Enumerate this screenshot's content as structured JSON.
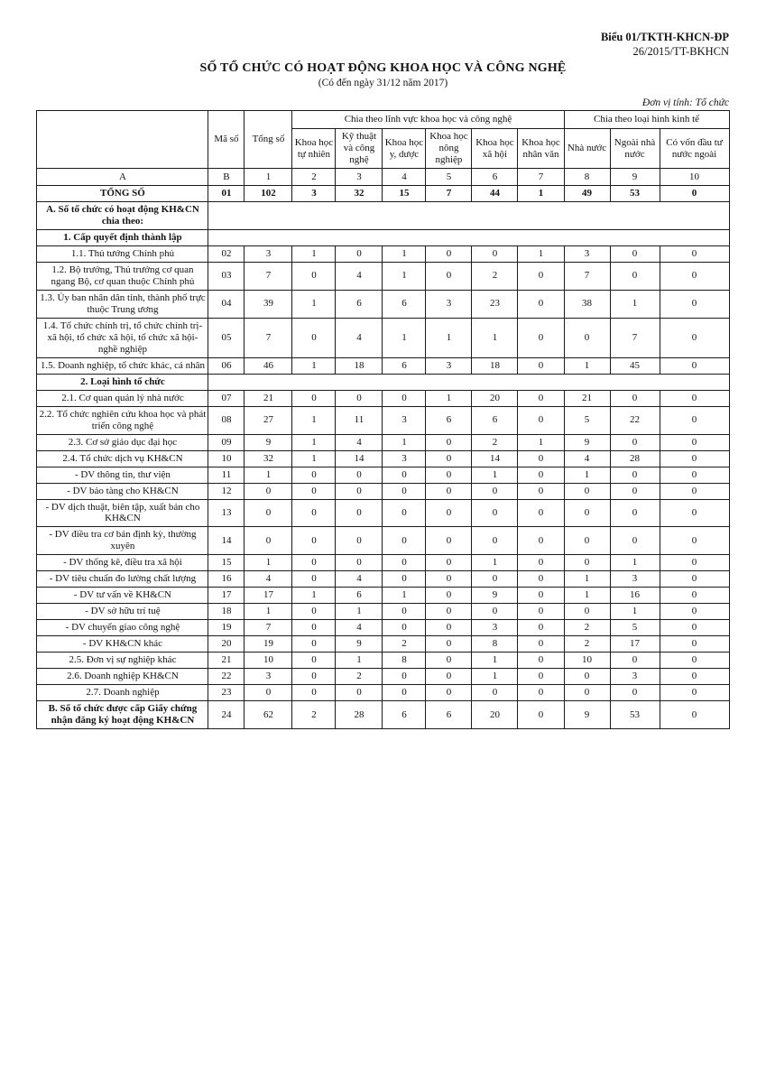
{
  "page": {
    "form_code": "Biểu 01/TKTH-KHCN-ĐP",
    "form_ref": "26/2015/TT-BKHCN",
    "title": "SỐ TỔ CHỨC CÓ HOẠT ĐỘNG KHOA HỌC VÀ CÔNG NGHỆ",
    "subtitle": "(Có đến ngày 31/12 năm 2017)",
    "unit_note": "Đơn vị tính: Tổ chức"
  },
  "table": {
    "header": {
      "col_ma_so": "Mã số",
      "col_tong_so": "Tổng số",
      "group_fields": "Chia theo lĩnh vực khoa học và công nghệ",
      "group_economy": "Chia theo loại hình kinh tế",
      "field_cols": [
        "Khoa học tự nhiên",
        "Kỹ thuật và công nghệ",
        "Khoa học y, dược",
        "Khoa học nông nghiệp",
        "Khoa học xã hội",
        "Khoa học nhân văn"
      ],
      "economy_cols": [
        "Nhà nước",
        "Ngoài nhà nước",
        "Có vốn đầu tư nước ngoài"
      ],
      "letter_row": [
        "A",
        "B",
        "1",
        "2",
        "3",
        "4",
        "5",
        "6",
        "7",
        "8",
        "9",
        "10"
      ]
    },
    "rows": [
      {
        "label": "TỔNG SỐ",
        "code": "01",
        "values": [
          "102",
          "3",
          "32",
          "15",
          "7",
          "44",
          "1",
          "49",
          "53",
          "0"
        ],
        "style": "total"
      },
      {
        "label": "A. Số tổ chức có hoạt động KH&CN chia theo:",
        "style": "section"
      },
      {
        "label": "1. Cấp quyết định thành lập",
        "style": "section"
      },
      {
        "label": "1.1. Thủ tướng Chính phủ",
        "code": "02",
        "values": [
          "3",
          "1",
          "0",
          "1",
          "0",
          "0",
          "1",
          "3",
          "0",
          "0"
        ]
      },
      {
        "label": "1.2. Bộ trưởng, Thủ trưởng cơ quan ngang Bộ, cơ quan thuộc Chính phủ",
        "code": "03",
        "values": [
          "7",
          "0",
          "4",
          "1",
          "0",
          "2",
          "0",
          "7",
          "0",
          "0"
        ]
      },
      {
        "label": "1.3. Ủy ban nhân dân tỉnh, thành phố trực thuộc Trung ương",
        "code": "04",
        "values": [
          "39",
          "1",
          "6",
          "6",
          "3",
          "23",
          "0",
          "38",
          "1",
          "0"
        ]
      },
      {
        "label": "1.4. Tổ chức chính trị, tổ chức chính trị-xã hội, tổ chức xã hội, tổ chức xã hội-nghề nghiệp",
        "code": "05",
        "values": [
          "7",
          "0",
          "4",
          "1",
          "1",
          "1",
          "0",
          "0",
          "7",
          "0"
        ]
      },
      {
        "label": "1.5. Doanh nghiệp, tổ chức khác, cá nhân",
        "code": "06",
        "values": [
          "46",
          "1",
          "18",
          "6",
          "3",
          "18",
          "0",
          "1",
          "45",
          "0"
        ]
      },
      {
        "label": "2. Loại hình tổ chức",
        "style": "section"
      },
      {
        "label": "2.1. Cơ quan quản lý nhà nước",
        "code": "07",
        "values": [
          "21",
          "0",
          "0",
          "0",
          "1",
          "20",
          "0",
          "21",
          "0",
          "0"
        ]
      },
      {
        "label": "2.2. Tổ chức nghiên cứu khoa học và phát triển công nghệ",
        "code": "08",
        "values": [
          "27",
          "1",
          "11",
          "3",
          "6",
          "6",
          "0",
          "5",
          "22",
          "0"
        ]
      },
      {
        "label": "2.3. Cơ sở giáo dục đại học",
        "code": "09",
        "values": [
          "9",
          "1",
          "4",
          "1",
          "0",
          "2",
          "1",
          "9",
          "0",
          "0"
        ]
      },
      {
        "label": "2.4. Tổ chức dịch vụ KH&CN",
        "code": "10",
        "values": [
          "32",
          "1",
          "14",
          "3",
          "0",
          "14",
          "0",
          "4",
          "28",
          "0"
        ]
      },
      {
        "label": "- DV thông tin, thư viện",
        "code": "11",
        "values": [
          "1",
          "0",
          "0",
          "0",
          "0",
          "1",
          "0",
          "1",
          "0",
          "0"
        ]
      },
      {
        "label": "- DV bảo tàng cho KH&CN",
        "code": "12",
        "values": [
          "0",
          "0",
          "0",
          "0",
          "0",
          "0",
          "0",
          "0",
          "0",
          "0"
        ]
      },
      {
        "label": "- DV dịch thuật, biên tập, xuất bản cho KH&CN",
        "code": "13",
        "values": [
          "0",
          "0",
          "0",
          "0",
          "0",
          "0",
          "0",
          "0",
          "0",
          "0"
        ]
      },
      {
        "label": "- DV điều tra cơ bản định kỳ, thường xuyên",
        "code": "14",
        "values": [
          "0",
          "0",
          "0",
          "0",
          "0",
          "0",
          "0",
          "0",
          "0",
          "0"
        ]
      },
      {
        "label": "- DV thống kê, điều tra xã hội",
        "code": "15",
        "values": [
          "1",
          "0",
          "0",
          "0",
          "0",
          "1",
          "0",
          "0",
          "1",
          "0"
        ]
      },
      {
        "label": "- DV tiêu chuẩn đo lường chất lượng",
        "code": "16",
        "values": [
          "4",
          "0",
          "4",
          "0",
          "0",
          "0",
          "0",
          "1",
          "3",
          "0"
        ]
      },
      {
        "label": "- DV tư vấn về KH&CN",
        "code": "17",
        "values": [
          "17",
          "1",
          "6",
          "1",
          "0",
          "9",
          "0",
          "1",
          "16",
          "0"
        ]
      },
      {
        "label": "- DV sở hữu trí tuệ",
        "code": "18",
        "values": [
          "1",
          "0",
          "1",
          "0",
          "0",
          "0",
          "0",
          "0",
          "1",
          "0"
        ]
      },
      {
        "label": "- DV chuyển giao công nghệ",
        "code": "19",
        "values": [
          "7",
          "0",
          "4",
          "0",
          "0",
          "3",
          "0",
          "2",
          "5",
          "0"
        ]
      },
      {
        "label": "- DV KH&CN khác",
        "code": "20",
        "values": [
          "19",
          "0",
          "9",
          "2",
          "0",
          "8",
          "0",
          "2",
          "17",
          "0"
        ]
      },
      {
        "label": "2.5. Đơn vị sự nghiệp khác",
        "code": "21",
        "values": [
          "10",
          "0",
          "1",
          "8",
          "0",
          "1",
          "0",
          "10",
          "0",
          "0"
        ]
      },
      {
        "label": "2.6. Doanh nghiệp KH&CN",
        "code": "22",
        "values": [
          "3",
          "0",
          "2",
          "0",
          "0",
          "1",
          "0",
          "0",
          "3",
          "0"
        ]
      },
      {
        "label": "2.7. Doanh nghiệp",
        "code": "23",
        "values": [
          "0",
          "0",
          "0",
          "0",
          "0",
          "0",
          "0",
          "0",
          "0",
          "0"
        ]
      },
      {
        "label": "B. Số tổ chức được cấp Giấy chứng nhận đăng ký hoạt động KH&CN",
        "code": "24",
        "values": [
          "62",
          "2",
          "28",
          "6",
          "6",
          "20",
          "0",
          "9",
          "53",
          "0"
        ],
        "style": "bold-label"
      }
    ]
  }
}
